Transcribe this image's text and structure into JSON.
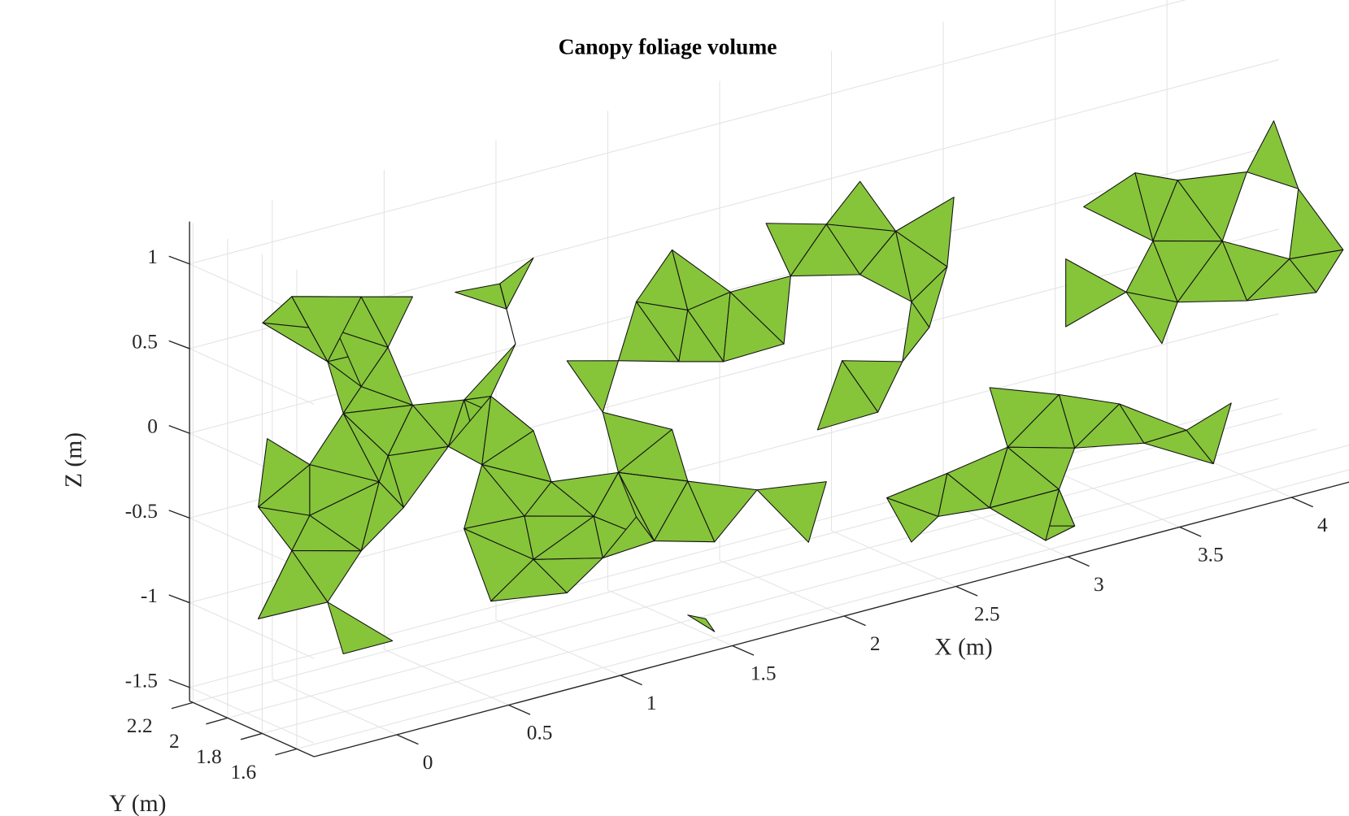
{
  "chart_data": {
    "type": "mesh3d",
    "title": "Canopy foliage volume",
    "xlabel": "X (m)",
    "ylabel": "Y (m)",
    "zlabel": "Z (m)",
    "xlim": [
      -0.37,
      4.5
    ],
    "ylim": [
      1.5,
      2.22
    ],
    "zlim": [
      -1.58,
      1.25
    ],
    "xticks": [
      0,
      0.5,
      1,
      1.5,
      2,
      2.5,
      3,
      3.5,
      4
    ],
    "yticks": [
      1.6,
      1.8,
      2,
      2.2
    ],
    "zticks": [
      -1.5,
      -1,
      -0.5,
      0,
      0.5,
      1
    ],
    "grid": true,
    "color": "#86c43a",
    "foliage": {
      "x": [
        -0.31,
        -0.16,
        -0.31,
        -0.16,
        0.0,
        0.15,
        0.07,
        0.29,
        0.42,
        0.34,
        0.61,
        -0.08,
        -0.2,
        0.23,
        -0.27,
        0.0,
        0.27,
        0.38,
        0.07,
        0.61,
        0.54,
        0.27,
        -0.08,
        0.15,
        -0.29,
        -0.16,
        0.04,
        0.15,
        0.38,
        0.57,
        0.77,
        1.04,
        1.3,
        1.54,
        1.61,
        0.92,
        1.15,
        1.38,
        0.84,
        1.07,
        1.3,
        1.57,
        0.73,
        0.92,
        1.23,
        1.54,
        0.69,
        1.0,
        1.3,
        1.61,
        0.88,
        1.19,
        0.8,
        0.73,
        0.92,
        1.23,
        1.46,
        1.73,
        1.07,
        1.38,
        1.8,
        2.11,
        2.38,
        1.96,
        2.23,
        2.54,
        1.8,
        2.07,
        2.38,
        2.61,
        1.77,
        2.04,
        2.3,
        2.57,
        1.88,
        2.19,
        2.46,
        1.92,
        2.23,
        2.15,
        2.5,
        2.73,
        2.61,
        2.92,
        3.15,
        3.5,
        2.8,
        3.07,
        3.38,
        3.61,
        2.77,
        3.04,
        3.3,
        3.57,
        2.69,
        3.0,
        3.3,
        2.96,
        3.27,
        3.54,
        3.04,
        3.34,
        3.65,
        2.77,
        2.96,
        3.27,
        4.07,
        4.27,
        3.92,
        4.23,
        3.8,
        4.11,
        4.34,
        3.69,
        4.0,
        4.3,
        4.54,
        3.8,
        4.11,
        4.42,
        3.73,
        4.07,
        4.38,
        4.04,
        4.54,
        3.84,
        3.96,
        1.61,
        1.73,
        3.17,
        3.34,
        1.69,
        3.21
      ],
      "y": [
        1.9,
        1.9,
        1.9,
        1.9,
        1.9,
        1.9,
        1.9,
        1.9,
        1.9,
        1.9,
        1.9,
        1.9,
        1.9,
        1.9,
        1.9,
        1.9,
        1.9,
        1.9,
        1.9,
        1.9,
        1.9,
        1.9,
        1.9,
        1.9,
        1.9,
        1.9,
        1.9,
        1.9,
        1.9,
        1.9,
        1.9,
        1.9,
        1.9,
        1.9,
        1.9,
        1.9,
        1.9,
        1.9,
        1.9,
        1.9,
        1.9,
        1.9,
        1.9,
        1.9,
        1.9,
        1.9,
        1.9,
        1.9,
        1.9,
        1.9,
        1.9,
        1.9,
        1.9,
        1.9,
        1.9,
        1.9,
        1.9,
        1.9,
        1.9,
        1.9,
        1.9,
        1.9,
        1.9,
        1.9,
        1.9,
        1.9,
        1.9,
        1.9,
        1.9,
        1.9,
        1.9,
        1.9,
        1.9,
        1.9,
        1.9,
        1.9,
        1.9,
        1.9,
        1.9,
        1.9,
        1.9,
        1.9,
        1.9,
        1.9,
        1.9,
        1.9,
        1.9,
        1.9,
        1.9,
        1.9,
        1.9,
        1.9,
        1.9,
        1.9,
        1.9,
        1.9,
        1.9,
        1.9,
        1.9,
        1.9,
        1.9,
        1.9,
        1.9,
        1.9,
        1.9,
        1.9,
        1.9,
        1.9,
        1.9,
        1.9,
        1.9,
        1.9,
        1.9,
        1.9,
        1.9,
        1.9,
        1.9,
        1.9,
        1.9,
        1.9,
        1.9,
        1.9,
        1.9,
        1.9,
        1.9,
        1.9,
        1.9,
        1.9,
        1.9,
        1.9,
        1.9,
        1.9,
        1.9
      ],
      "z": [
        -0.31,
        -0.62,
        -0.97,
        -1.36,
        -0.98,
        -0.73,
        -1.31,
        -1.31,
        -1.1,
        -0.54,
        -0.76,
        -0.44,
        -0.86,
        -0.35,
        0.08,
        0.44,
        0.43,
        0.05,
        0.11,
        0.0,
        -0.25,
        -0.21,
        -0.14,
        0.24,
        0.77,
        0.88,
        0.61,
        0.77,
        0.69,
        0.65,
        0.63,
        0.99,
        0.8,
        0.56,
        0.18,
        0.73,
        0.5,
        0.31,
        0.25,
        0.07,
        -0.01,
        -0.11,
        -0.02,
        -0.29,
        -0.29,
        -0.5,
        -0.41,
        -0.62,
        -0.67,
        -0.83,
        -0.78,
        -0.89,
        0.47,
        -1.23,
        -1.05,
        -1.15,
        -1.13,
        -1.23,
        -1.3,
        -0.96,
        1.0,
        0.97,
        0.67,
        0.57,
        0.47,
        0.32,
        0.22,
        0.22,
        0.12,
        -0.12,
        -0.18,
        -0.17,
        -0.36,
        -0.46,
        -0.52,
        -0.73,
        -0.72,
        -0.99,
        -1.05,
        -1.38,
        -1.24,
        -1.43,
        -1.54,
        1.09,
        0.71,
        0.71,
        0.43,
        0.33,
        0.17,
        0.29,
        0.03,
        -0.01,
        -0.11,
        -0.4,
        -0.3,
        -0.4,
        -0.51,
        -0.75,
        -0.9,
        -1.05,
        -1.13,
        -1.24,
        -1.32,
        -1.19,
        -1.46,
        -1.46,
        0.89,
        0.8,
        0.64,
        0.38,
        0.18,
        0.12,
        -0.06,
        -0.14,
        -0.25,
        -0.46,
        -0.49,
        -0.54,
        -0.64,
        -0.7,
        -0.76,
        -0.98,
        -1.19,
        -1.22,
        -1.15,
        -1.31,
        -1.55,
        -1.62,
        -1.76,
        -1.64,
        -1.7,
        -1.67,
        -1.74
      ]
    }
  }
}
